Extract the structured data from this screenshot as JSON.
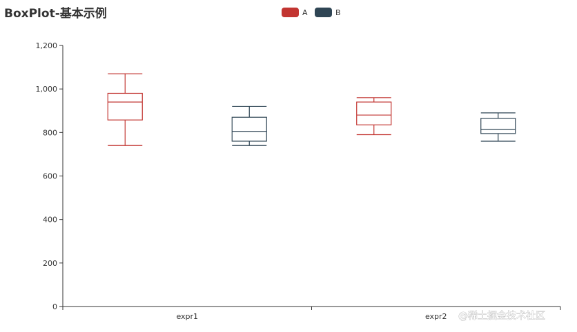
{
  "chart_data": {
    "type": "boxplot",
    "title": "BoxPlot-基本示例",
    "categories": [
      "expr1",
      "expr2"
    ],
    "ylim": [
      0,
      1200
    ],
    "yticks": [
      0,
      200,
      400,
      600,
      800,
      1000,
      1200
    ],
    "ytick_labels": [
      "0",
      "200",
      "400",
      "600",
      "800",
      "1,000",
      "1,200"
    ],
    "grid": false,
    "legend_position": "top-center",
    "series": [
      {
        "name": "A",
        "color": "#c23531",
        "boxes": [
          {
            "min": 740,
            "q1": 857.5,
            "median": 940,
            "q3": 980,
            "max": 1070
          },
          {
            "min": 790,
            "q1": 835,
            "median": 880,
            "q3": 940,
            "max": 960
          }
        ]
      },
      {
        "name": "B",
        "color": "#2f4554",
        "boxes": [
          {
            "min": 740,
            "q1": 760,
            "median": 805,
            "q3": 870,
            "max": 920
          },
          {
            "min": 760,
            "q1": 795,
            "median": 815,
            "q3": 865,
            "max": 890
          }
        ]
      }
    ]
  },
  "watermark": "@稀土掘金技术社区"
}
